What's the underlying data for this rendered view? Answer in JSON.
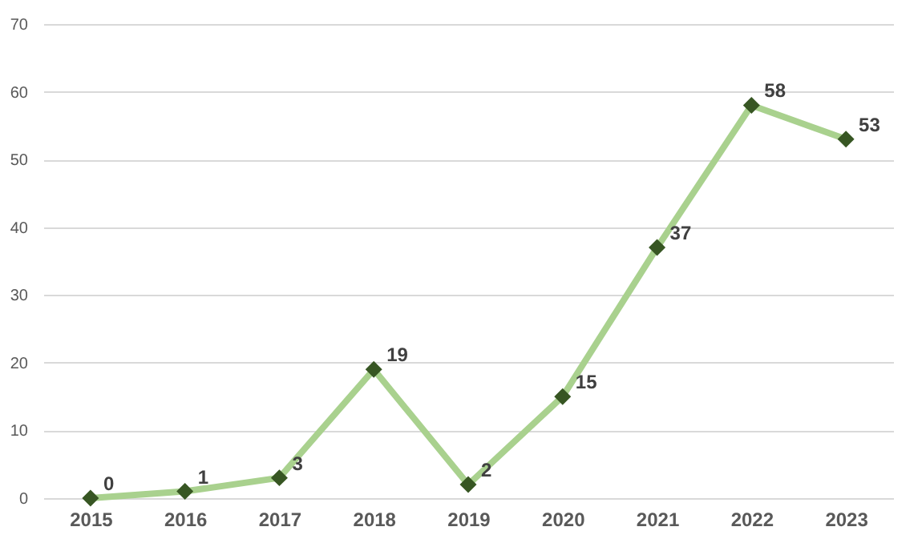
{
  "chart_data": {
    "type": "line",
    "categories": [
      "2015",
      "2016",
      "2017",
      "2018",
      "2019",
      "2020",
      "2021",
      "2022",
      "2023"
    ],
    "series": [
      {
        "color": "#a9d18e",
        "values": [
          0,
          1,
          3,
          19,
          2,
          15,
          37,
          58,
          53
        ]
      }
    ],
    "marker": "diamond",
    "ylim": [
      0,
      70
    ],
    "yticks": [
      0,
      10,
      20,
      30,
      40,
      50,
      60,
      70
    ],
    "grid": "y",
    "data_labels": true
  }
}
